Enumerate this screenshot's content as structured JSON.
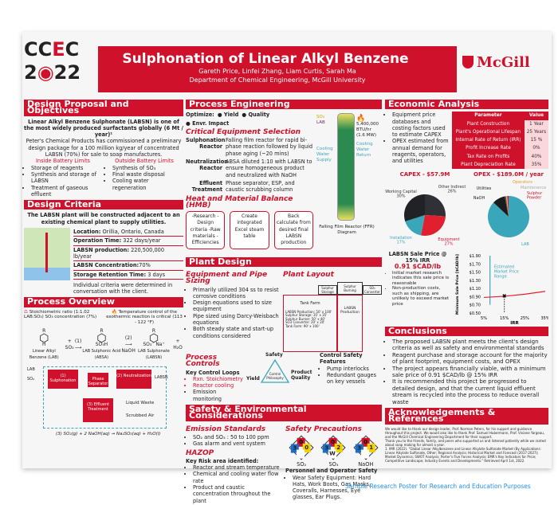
{
  "header": {
    "logo_top": "CC",
    "logo_e": "E",
    "logo_c": "C",
    "logo_year_a": "2",
    "logo_year_b": "22",
    "title": "Sulphonation of Linear Alkyl Benzene",
    "authors": "Gareth Price, Linfei Zhang, Liam Curtis, Sarah Ma",
    "department": "Department of Chemical Engineering, McGill University",
    "university_logo": "McGill"
  },
  "design_proposal": {
    "heading": "Design Proposal and Objectives",
    "intro": "Linear Alkyl Benzene Sulphonate (LABSN) is one of the most widely produced surfactants globally (6 Mt / year)¹",
    "body": "Peter's Chemical Products has commissioned a preliminary design package for a 100 million kg/year of concentrated LABSN (70%) for sale to soap manufactures.",
    "inside_title": "Inside Battery Limits",
    "inside": [
      "Storage of reagents",
      "Synthesis and storage of LABSN",
      "Treatment of gaseous effluent"
    ],
    "outside_title": "Outside Battery Limits",
    "outside": [
      "Synthesis of SO₃",
      "Final waste disposal",
      "Cooling water regeneration"
    ]
  },
  "design_criteria": {
    "heading": "Design Criteria",
    "intro": "The LABSN plant will be constructed adjacent to an existing chemical plant to supply utilities.",
    "items": [
      {
        "k": "Location:",
        "v": " Orillia, Ontario, Canada"
      },
      {
        "k": "Operation Time:",
        "v": " 322 days/year"
      },
      {
        "k": "LABSN production:",
        "v": " 220,500,000 lb/year"
      },
      {
        "k": "LABSN Concentration:",
        "v": "70%"
      },
      {
        "k": "Storage Retention Time:",
        "v": " 3 days"
      }
    ],
    "note": "Individual criteria were determined in conversation with the client."
  },
  "process_overview": {
    "heading": "Process Overview",
    "stoich": "Stoichiometric ratio (1:1.02 LAB:SO₃) SO₃ concentration (7%)",
    "temp": "Temperature control of the exothermic reaction is critical (113 - 122 °F)",
    "reaction": {
      "r1": "R",
      "plus_so3": "+ SO₃",
      "h": "H",
      "step1": "(1)",
      "so3h": "SO₃H",
      "step2": "(2)",
      "naoh": "NaOH",
      "so3na": "SO₃⁻ Na⁺",
      "plus_h2o": "+ H₂O",
      "lab": "Linear Alkyl Benzene (LAB)",
      "absa": "LAB Sulphonic Acid (ABSA)",
      "labsn": "LAB Sulphonate (LABSN)"
    },
    "flow": {
      "lab": "LAB",
      "so2": "SO₂",
      "sulph": "(1) Sulphonation",
      "sep": "Phase Separator",
      "neut": "(2) Neutralization",
      "eff": "(3) Effluent Treatment",
      "labsn": "LABSN",
      "liquid": "Liquid Waste",
      "air": "Scrubbed Air"
    },
    "equation": "(3) SO₂(g) + 2 NaOH(aq) → Na₂SO₃(aq) + H₂O(l)"
  },
  "process_engineering": {
    "heading": "Process Engineering",
    "optimize": "Optimize:",
    "goals": [
      {
        "n": "1",
        "t": "Yield"
      },
      {
        "n": "2",
        "t": "Quality"
      },
      {
        "n": "3",
        "t": "Envr. Impact"
      }
    ],
    "equip_title": "Critical Equipment Selection",
    "equipment": [
      {
        "k": "Sulphonation Reactor",
        "v": "Falling film reactor for rapid bi-phase reaction followed by liquid phase aging (~20 mins)"
      },
      {
        "k": "Neutralization Reactor",
        "v": "ABSA diluted 1:10 with LABSN to ensure homogeneous product and neutralized with NaOH"
      },
      {
        "k": "Effluent Treatment",
        "v": "Phase separator, ESP, and caustic scrubbing column"
      }
    ],
    "hmb_title": "Heat and Material Balance (HMB)",
    "hmb_steps": [
      "-Research -Design criteria -Raw materials -Efficiencies",
      "Create integrated Excel steam table",
      "Back calculate from desired final LABSN production"
    ],
    "reactor": {
      "so3": "SO₃",
      "lab": "LAB",
      "duty": "5,400,000 BTU/hr",
      "duty_mw": "(1.6 MW)",
      "cw_supply": "Cooling Water Supply",
      "cw_return": "Cooling Water Return",
      "caption": "Falling Film Reactor (FFR) Diagram"
    }
  },
  "plant_design": {
    "heading": "Plant Design",
    "sizing_title": "Equipment and Pipe Sizing",
    "sizing": [
      "Primarily utilized 304 ss to resist corrosive conditions",
      "Design equations used to size equipment",
      "Pipe sized using Darcy-Weisbach equations",
      "Both steady state and start-up conditions considered"
    ],
    "layout_title": "Plant Layout",
    "layout": {
      "sulphur_storage": "Sulphur Storage",
      "sulphur_burning": "Sulphur Burning",
      "so3_converter": "SO₃ Converter",
      "tank_farm": "Tank Farm",
      "labsn_production": "LABSN Production",
      "dims": [
        "LABSN Production: 50' x 100'",
        "Sulphur Storage: 35' x 35'",
        "Sulphur Burner: 50' x 40'",
        "SO3 Converter: 20' x 20'",
        "Tank Farm: 90' x 100'"
      ]
    },
    "controls_title": "Process Controls",
    "loops_title": "Key Control Loops",
    "loops": [
      "Rxn. Stoichiometry",
      "Reactor cooling",
      "Emission monitoring"
    ],
    "triangle": {
      "top": "Safety",
      "left": "Yield",
      "right": "Product Quality",
      "center": "Control Philosophy"
    },
    "safety_features_title": "Control Safety Features",
    "safety_features": [
      "Pump interlocks",
      "Redundant gauges on key vessels"
    ]
  },
  "safety_env": {
    "heading": "Safety & Environmental Considerations",
    "emission_title": "Emission Standards",
    "emissions": [
      "SO₂ and SO₃ : 50 to 100 ppm",
      "Gas alarm and vent system"
    ],
    "hazop_title": "HAZOP",
    "risk_title": "Key Risk area identified:",
    "risks": [
      "Reactor and stream temperature",
      "Chemical and cooling water flow rate",
      "Product and caustic concentration throughout the plant"
    ],
    "precautions_title": "Safety Precautions",
    "nfpa": [
      {
        "name": "SO₂",
        "health": "3",
        "fire": "0",
        "reactivity": "0",
        "special": ""
      },
      {
        "name": "SO₃",
        "health": "3",
        "fire": "0",
        "reactivity": "2",
        "special": "W"
      },
      {
        "name": "NaOH",
        "health": "3",
        "fire": "0",
        "reactivity": "1",
        "special": ""
      }
    ],
    "personnel_title": "Personnel and Operator Safety",
    "personnel": [
      "Wear Safety Equipment: Hard Hats, Work Boots, Gas Masks, Coveralls, Harnesses, Eye glasses, Ear Plugs."
    ]
  },
  "economic": {
    "heading": "Economic Analysis",
    "bullets": [
      "Equipment price databases and costing factors used to estimate CAPEX",
      "OPEX estimated from annual demand for reagents, operators, and utilities"
    ],
    "table_headers": [
      "Parameter",
      "Value"
    ],
    "table": [
      [
        "Plant Construction",
        "1 Year"
      ],
      [
        "Plant's Operational Lifespan",
        "25 Years"
      ],
      [
        "Internal Rate of Return (IRR)",
        "15 %"
      ],
      [
        "Profit Increase Rate",
        "0%"
      ],
      [
        "Tax Rate on Profits",
        "40%"
      ],
      [
        "Plant Depreciation Rate",
        "35%"
      ]
    ],
    "sale_title": "LABSN Sale Price @ 15% IRR",
    "sale_value": "0.91 $CAD/lb",
    "sale_notes": [
      "Initial market research indicates this sale price is reasonable",
      "Non-production costs, such as shipping, are unlikely to exceed market price"
    ]
  },
  "chart_data": [
    {
      "type": "pie",
      "title": "CAPEX - $57.9M",
      "labels": [
        "Other Indirect",
        "Equipment",
        "Installation",
        "Working Capital"
      ],
      "values": [
        26,
        27,
        17,
        30
      ],
      "colors": [
        "#2f3137",
        "#e0202e",
        "#3aa6b9",
        "#202226"
      ]
    },
    {
      "type": "pie",
      "title": "OPEX - $189.0M / year",
      "labels": [
        "LAB",
        "NaOH",
        "Utilities",
        "Operators",
        "Maintenance",
        "Sulphur Powder"
      ],
      "values": [
        87,
        10,
        1,
        0.5,
        0.5,
        1
      ],
      "colors": [
        "#3aa6b9",
        "#1b1b1d",
        "#555555",
        "#e89a2c",
        "#bbbbbb",
        "#d0112b"
      ],
      "label_colors": [
        "#3aa6b9",
        "#222222",
        "#222222",
        "#e89a2c",
        "#aaaaaa",
        "#d0112b"
      ]
    },
    {
      "type": "line",
      "xlabel": "IRR",
      "ylabel": "Minimum Sale Price [$CAD/lb]",
      "x_ticks": [
        "5%",
        "15%",
        "25%",
        "35%"
      ],
      "y_ticks": [
        "$0.50",
        "$0.70",
        "$0.90",
        "$1.10",
        "$1.30",
        "$1.50",
        "$1.70",
        "$1.90"
      ],
      "xlim": [
        5,
        35
      ],
      "ylim": [
        0.5,
        1.9
      ],
      "series": [
        {
          "x": [
            5,
            15,
            25,
            35
          ],
          "y": [
            0.88,
            0.91,
            0.96,
            1.03
          ]
        }
      ],
      "marker": {
        "x": 15,
        "y": 0.91
      },
      "range_annotation": "Estimated Market Price Range",
      "range": [
        0.7,
        1.9
      ]
    }
  ],
  "conclusions": {
    "heading": "Conclusions",
    "items": [
      "The proposed LABSN plant meets the client's design criteria as well as safety and environmental standards",
      "Reagent purchase and storage account for the majority of plant footprint, equipment costs, and OPEX",
      "The project appears financially viable, with a minimum sale price of 0.91 $CAD/lb @ 15% IRR",
      "It is recommended this project be progressed to detailed design, and that the current liquid effluent stream is recycled into the process to reduce overall waste"
    ]
  },
  "acknowledgements": {
    "heading": "Acknowledgements & References",
    "text1": "We would like to thank our design leader, Prof. Norman Peters, for his support and guidance throughout this project. We would also like to thank Prof. Samuel Hubermann, Prof. Viviane Yargeau, and the McGill Chemical Engineering Department for their support.",
    "text2": "Thank you to the friends, family, and peers who supported us and listened patiently while we ranted about soap making for almost a year.",
    "ref": "1. IMR (2022). \"Global Linear Alkylbenzene and Linear Alkylate Sulfonate Market (By Applications: Linear Alkylate Sulfonate, Other; Regional Analysis; Historical Market and Forecast (2017-2027); Market Dynamics; SWOT Analysis; Porter's Five Forces Analysis; EMR's Key Indicators for Price; Competitive Landscape; Industry Events and Developments.\" Retrieved April 1st, 2022."
  },
  "caption": "Sample Research Poster for Research and Education Purposes"
}
